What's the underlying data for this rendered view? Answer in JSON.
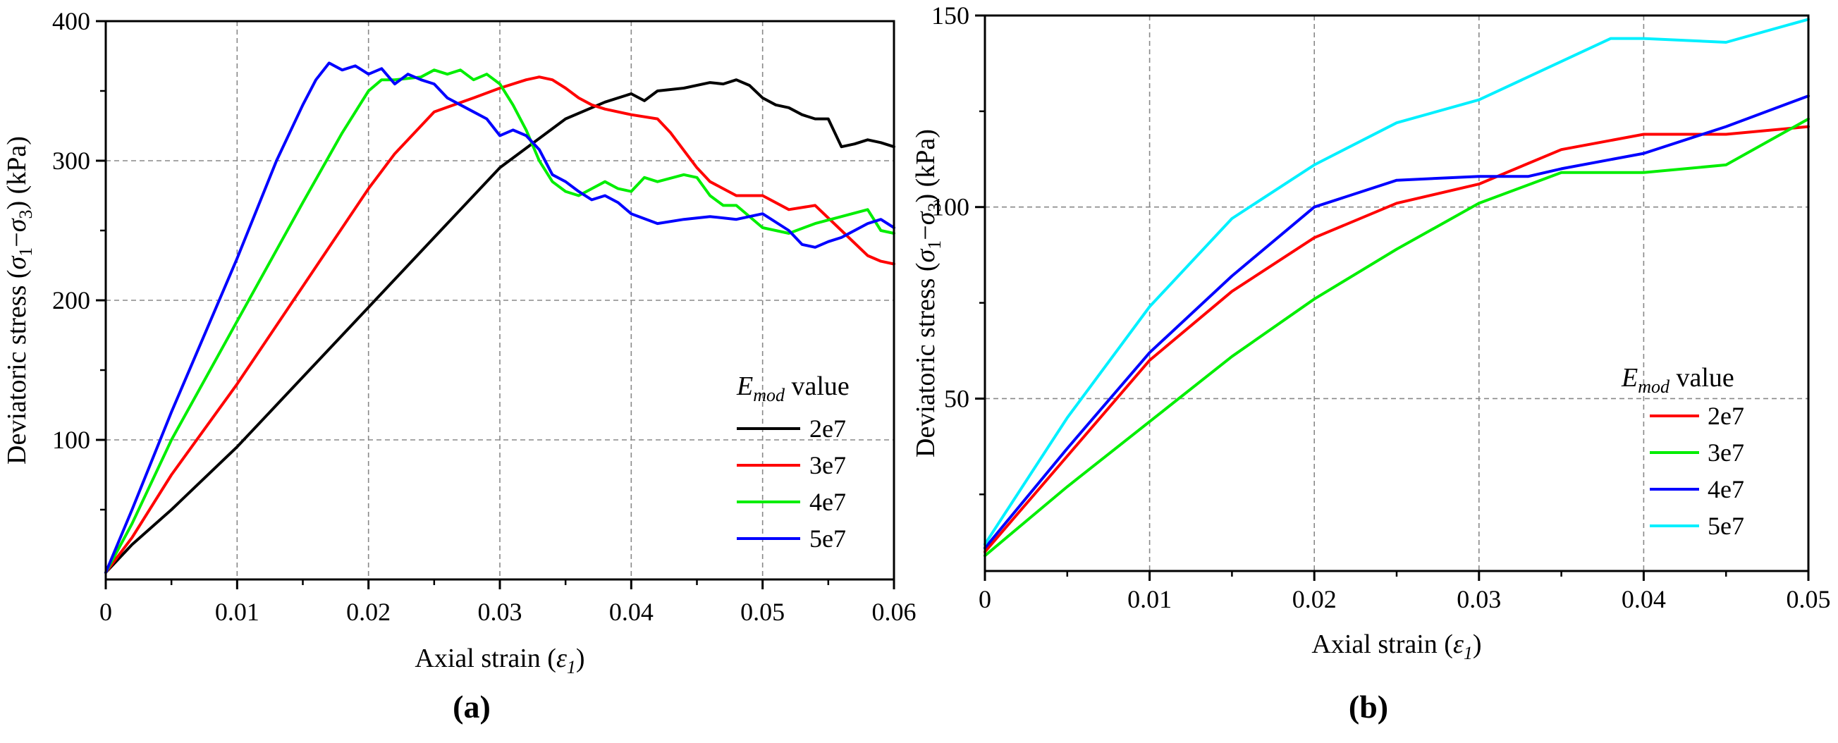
{
  "chart_data": [
    {
      "type": "line",
      "panel_label": "(a)",
      "xlabel_prefix": "Axial strain (",
      "xlabel_symbol": "ε",
      "xlabel_sub": "1",
      "xlabel_suffix": ")",
      "ylabel_prefix": "Deviatoric stress (",
      "ylabel_sym1": "σ",
      "ylabel_sub1": "1",
      "ylabel_op": "−",
      "ylabel_sym2": "σ",
      "ylabel_sub2": "3",
      "ylabel_suffix": ") (kPa)",
      "xlim": [
        0,
        0.06
      ],
      "ylim": [
        0,
        400
      ],
      "xticks": [
        0,
        0.01,
        0.02,
        0.03,
        0.04,
        0.05,
        0.06
      ],
      "xtick_labels": [
        "0",
        "0.01",
        "0.02",
        "0.03",
        "0.04",
        "0.05",
        "0.06"
      ],
      "yticks": [
        100,
        200,
        300,
        400
      ],
      "ytick_labels": [
        "100",
        "200",
        "300",
        "400"
      ],
      "grid": true,
      "legend_title_main": "E",
      "legend_title_sub": "mod",
      "legend_title_rest": " value",
      "legend_position": "right",
      "series": [
        {
          "name": "2e7",
          "color": "#000000",
          "x": [
            0,
            0.002,
            0.005,
            0.01,
            0.015,
            0.02,
            0.025,
            0.03,
            0.035,
            0.038,
            0.04,
            0.041,
            0.042,
            0.044,
            0.046,
            0.047,
            0.048,
            0.049,
            0.05,
            0.051,
            0.052,
            0.053,
            0.054,
            0.055,
            0.056,
            0.057,
            0.058,
            0.059,
            0.06
          ],
          "values": [
            5,
            25,
            50,
            95,
            145,
            195,
            245,
            295,
            330,
            342,
            348,
            343,
            350,
            352,
            356,
            355,
            358,
            354,
            345,
            340,
            338,
            333,
            330,
            330,
            310,
            312,
            315,
            313,
            310
          ]
        },
        {
          "name": "3e7",
          "color": "#ff0000",
          "x": [
            0,
            0.002,
            0.005,
            0.01,
            0.015,
            0.02,
            0.022,
            0.025,
            0.028,
            0.03,
            0.032,
            0.033,
            0.034,
            0.035,
            0.036,
            0.037,
            0.038,
            0.04,
            0.042,
            0.043,
            0.045,
            0.046,
            0.047,
            0.048,
            0.05,
            0.052,
            0.054,
            0.056,
            0.058,
            0.059,
            0.06
          ],
          "values": [
            5,
            30,
            75,
            140,
            210,
            280,
            305,
            335,
            345,
            352,
            358,
            360,
            358,
            352,
            345,
            340,
            337,
            333,
            330,
            320,
            295,
            285,
            280,
            275,
            275,
            265,
            268,
            250,
            232,
            228,
            226
          ]
        },
        {
          "name": "4e7",
          "color": "#00ee00",
          "x": [
            0,
            0.002,
            0.005,
            0.01,
            0.015,
            0.018,
            0.02,
            0.021,
            0.022,
            0.024,
            0.025,
            0.026,
            0.027,
            0.028,
            0.029,
            0.03,
            0.031,
            0.032,
            0.033,
            0.034,
            0.035,
            0.036,
            0.037,
            0.038,
            0.039,
            0.04,
            0.041,
            0.042,
            0.044,
            0.045,
            0.046,
            0.047,
            0.048,
            0.05,
            0.052,
            0.054,
            0.056,
            0.058,
            0.059,
            0.06
          ],
          "values": [
            5,
            40,
            100,
            185,
            270,
            320,
            350,
            358,
            358,
            360,
            365,
            362,
            365,
            358,
            362,
            355,
            340,
            322,
            300,
            285,
            278,
            275,
            280,
            285,
            280,
            278,
            288,
            285,
            290,
            288,
            275,
            268,
            268,
            252,
            248,
            255,
            260,
            265,
            250,
            248
          ]
        },
        {
          "name": "5e7",
          "color": "#0000ff",
          "x": [
            0,
            0.002,
            0.005,
            0.01,
            0.013,
            0.015,
            0.016,
            0.017,
            0.018,
            0.019,
            0.02,
            0.021,
            0.022,
            0.023,
            0.024,
            0.025,
            0.026,
            0.027,
            0.028,
            0.029,
            0.03,
            0.031,
            0.032,
            0.033,
            0.034,
            0.035,
            0.036,
            0.037,
            0.038,
            0.039,
            0.04,
            0.042,
            0.044,
            0.046,
            0.048,
            0.05,
            0.052,
            0.053,
            0.054,
            0.055,
            0.056,
            0.057,
            0.058,
            0.059,
            0.06
          ],
          "values": [
            5,
            50,
            120,
            230,
            300,
            340,
            358,
            370,
            365,
            368,
            362,
            366,
            355,
            362,
            358,
            355,
            345,
            340,
            335,
            330,
            318,
            322,
            318,
            308,
            290,
            285,
            278,
            272,
            275,
            270,
            262,
            255,
            258,
            260,
            258,
            262,
            250,
            240,
            238,
            242,
            245,
            250,
            255,
            258,
            252
          ]
        }
      ]
    },
    {
      "type": "line",
      "panel_label": "(b)",
      "xlabel_prefix": "Axial strain (",
      "xlabel_symbol": "ε",
      "xlabel_sub": "1",
      "xlabel_suffix": ")",
      "ylabel_prefix": "Deviatoric stress (",
      "ylabel_sym1": "σ",
      "ylabel_sub1": "1",
      "ylabel_op": "−",
      "ylabel_sym2": "σ",
      "ylabel_sub2": "3",
      "ylabel_suffix": ") (kPa)",
      "xlim": [
        0,
        0.05
      ],
      "ylim": [
        5,
        150
      ],
      "xticks": [
        0,
        0.01,
        0.02,
        0.03,
        0.04,
        0.05
      ],
      "xtick_labels": [
        "0",
        "0.01",
        "0.02",
        "0.03",
        "0.04",
        "0.05"
      ],
      "yticks": [
        50,
        100,
        150
      ],
      "ytick_labels": [
        "50",
        "100",
        "150"
      ],
      "grid": true,
      "legend_title_main": "E",
      "legend_title_sub": "mod",
      "legend_title_rest": " value",
      "legend_position": "right",
      "series": [
        {
          "name": "2e7",
          "color": "#ff0000",
          "x": [
            0,
            0.005,
            0.01,
            0.015,
            0.02,
            0.025,
            0.03,
            0.035,
            0.04,
            0.045,
            0.05
          ],
          "values": [
            10,
            35,
            60,
            78,
            92,
            101,
            106,
            115,
            119,
            119,
            121
          ]
        },
        {
          "name": "3e7",
          "color": "#00ee00",
          "x": [
            0,
            0.005,
            0.01,
            0.015,
            0.02,
            0.025,
            0.03,
            0.035,
            0.04,
            0.045,
            0.05
          ],
          "values": [
            9,
            27,
            44,
            61,
            76,
            89,
            101,
            109,
            109,
            111,
            123
          ]
        },
        {
          "name": "4e7",
          "color": "#0000ff",
          "x": [
            0,
            0.005,
            0.01,
            0.015,
            0.02,
            0.025,
            0.03,
            0.033,
            0.035,
            0.04,
            0.045,
            0.05
          ],
          "values": [
            11,
            37,
            62,
            82,
            100,
            107,
            108,
            108,
            110,
            114,
            121,
            129
          ]
        },
        {
          "name": "5e7",
          "color": "#00f0ff",
          "x": [
            0,
            0.005,
            0.01,
            0.015,
            0.02,
            0.025,
            0.03,
            0.035,
            0.038,
            0.04,
            0.045,
            0.05
          ],
          "values": [
            12,
            45,
            74,
            97,
            111,
            122,
            128,
            138,
            144,
            144,
            143,
            149
          ]
        }
      ]
    }
  ]
}
